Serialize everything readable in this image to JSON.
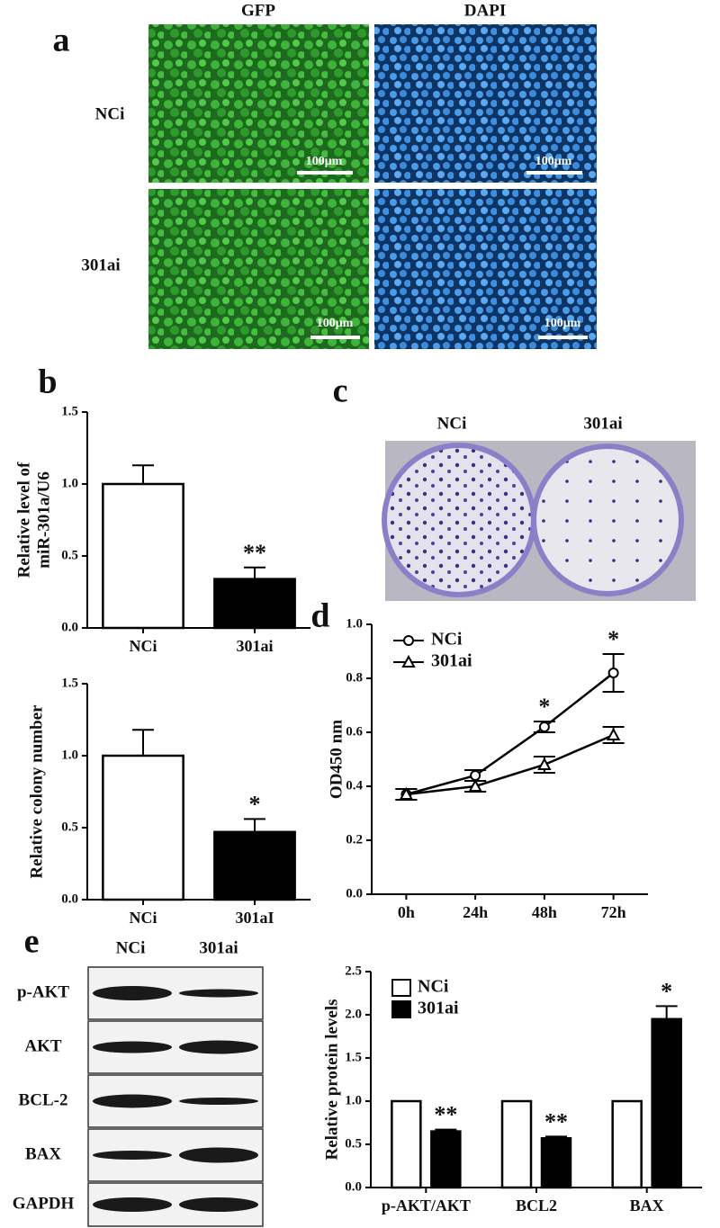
{
  "figure": {
    "letters": [
      "a",
      "b",
      "c",
      "d",
      "e"
    ],
    "panel_a": {
      "columns": [
        "GFP",
        "DAPI"
      ],
      "rows": [
        "NCi",
        "301ai"
      ],
      "scale_bar": "100μm"
    },
    "panel_c": {
      "labels": [
        "NCi",
        "301ai"
      ]
    },
    "panel_e_blot": {
      "lanes": [
        "NCi",
        "301ai"
      ],
      "proteins": [
        "p-AKT",
        "AKT",
        "BCL-2",
        "BAX",
        "GAPDH"
      ]
    }
  },
  "chart_data": [
    {
      "type": "bar",
      "ylabel": [
        "Relative level of",
        "miR-301a/U6"
      ],
      "categories": [
        "NCi",
        "301ai"
      ],
      "values": [
        1.0,
        0.34
      ],
      "errors": [
        0.13,
        0.08
      ],
      "colors": [
        "#ffffff",
        "#000000"
      ],
      "significance": [
        null,
        "**"
      ],
      "ylim": [
        0,
        1.5
      ],
      "yticks": [
        {
          "value": 0,
          "label": "0.0"
        },
        {
          "value": 0.5,
          "label": "0.5"
        },
        {
          "value": 1,
          "label": "1.0"
        },
        {
          "value": 1.5,
          "label": "1.5"
        }
      ]
    },
    {
      "type": "bar",
      "ylabel": [
        "Relative colony number"
      ],
      "categories": [
        "NCi",
        "301aI"
      ],
      "values": [
        1.0,
        0.47
      ],
      "errors": [
        0.18,
        0.09
      ],
      "colors": [
        "#ffffff",
        "#000000"
      ],
      "significance": [
        null,
        "*"
      ],
      "ylim": [
        0,
        1.5
      ],
      "yticks": [
        {
          "value": 0,
          "label": "0.0"
        },
        {
          "value": 0.5,
          "label": "0.5"
        },
        {
          "value": 1,
          "label": "1.0"
        },
        {
          "value": 1.5,
          "label": "1.5"
        }
      ]
    },
    {
      "type": "line",
      "ylabel": [
        "OD450 nm"
      ],
      "categories": [
        "0h",
        "24h",
        "48h",
        "72h"
      ],
      "legend": "upper left",
      "series": [
        {
          "name": "NCi",
          "color": "#000000",
          "marker": "circle",
          "values": [
            0.37,
            0.44,
            0.62,
            0.82
          ],
          "errors": [
            0.02,
            0.02,
            0.02,
            0.07
          ],
          "significance": [
            null,
            null,
            "*",
            "*"
          ]
        },
        {
          "name": "301ai",
          "color": "#000000",
          "marker": "triangle",
          "values": [
            0.37,
            0.4,
            0.48,
            0.59
          ],
          "errors": [
            0.02,
            0.02,
            0.03,
            0.03
          ]
        }
      ],
      "ylim": [
        0,
        1.0
      ],
      "yticks": [
        {
          "value": 0,
          "label": "0.0"
        },
        {
          "value": 0.2,
          "label": "0.2"
        },
        {
          "value": 0.4,
          "label": "0.4"
        },
        {
          "value": 0.6,
          "label": "0.6"
        },
        {
          "value": 0.8,
          "label": "0.8"
        },
        {
          "value": 1,
          "label": "1.0"
        }
      ]
    },
    {
      "type": "bar",
      "ylabel": [
        "Relative protein levels"
      ],
      "categories": [
        "p-AKT/AKT",
        "BCL2",
        "BAX"
      ],
      "legend": "upper left",
      "series": [
        {
          "name": "NCi",
          "color": "#ffffff",
          "values": [
            1,
            1,
            1
          ]
        },
        {
          "name": "301ai",
          "color": "#000000",
          "values": [
            0.65,
            0.57,
            1.95
          ],
          "errors": [
            0.02,
            0.02,
            0.15
          ],
          "significance": [
            "**",
            "**",
            "*"
          ]
        }
      ],
      "ylim": [
        0,
        2.5
      ],
      "yticks": [
        {
          "value": 0,
          "label": "0.0"
        },
        {
          "value": 0.5,
          "label": "0.5"
        },
        {
          "value": 1,
          "label": "1.0"
        },
        {
          "value": 1.5,
          "label": "1.5"
        },
        {
          "value": 2,
          "label": "2.0"
        },
        {
          "value": 2.5,
          "label": "2.5"
        }
      ]
    }
  ]
}
